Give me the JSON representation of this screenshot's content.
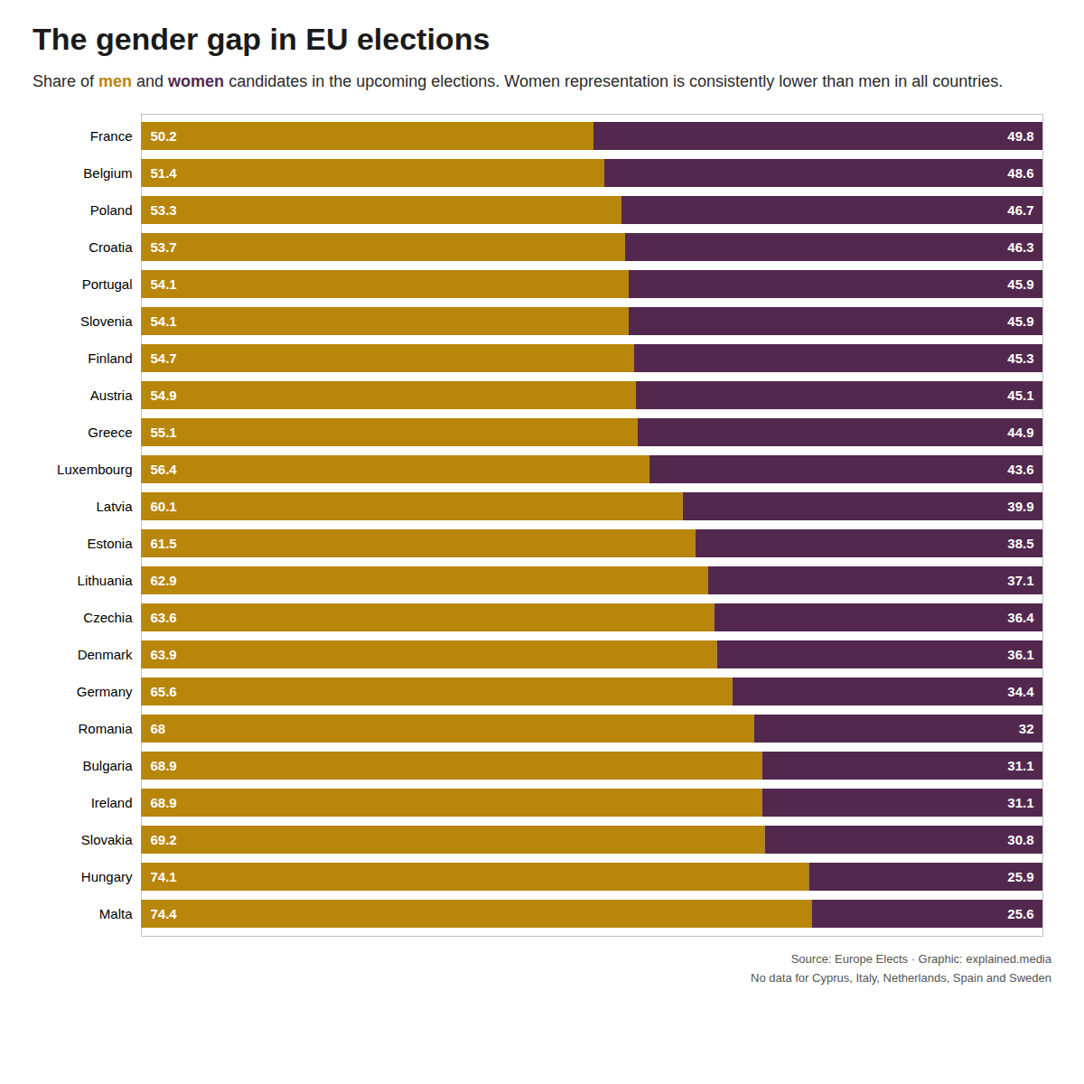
{
  "chart_data": {
    "type": "bar",
    "orientation": "horizontal",
    "stacked": true,
    "data_labels": true,
    "tick_labels": "y",
    "title": "The gender gap in EU elections",
    "subtitle": "Share of men and women candidates in the upcoming elections. Women representation is consistently lower than men in all countries.",
    "caption": "Source: Europe Elects · Graphic: explained.media\nNo data for Cyprus, Italy, Netherlands, Spain and Sweden",
    "categories": [
      "France",
      "Belgium",
      "Poland",
      "Croatia",
      "Portugal",
      "Slovenia",
      "Finland",
      "Austria",
      "Greece",
      "Luxembourg",
      "Latvia",
      "Estonia",
      "Lithuania",
      "Czechia",
      "Denmark",
      "Germany",
      "Romania",
      "Bulgaria",
      "Ireland",
      "Slovakia",
      "Hungary",
      "Malta"
    ],
    "series": [
      {
        "name": "men",
        "color": "#b8860b",
        "values": [
          50.2,
          51.4,
          53.3,
          53.7,
          54.1,
          54.1,
          54.7,
          54.9,
          55.1,
          56.4,
          60.1,
          61.5,
          62.9,
          63.6,
          63.9,
          65.6,
          68.0,
          68.9,
          68.9,
          69.2,
          74.1,
          74.4
        ]
      },
      {
        "name": "women",
        "color": "#52284f",
        "values": [
          49.8,
          48.6,
          46.7,
          46.3,
          45.9,
          45.9,
          45.3,
          45.1,
          44.9,
          43.6,
          39.9,
          38.5,
          37.1,
          36.4,
          36.1,
          34.4,
          32.0,
          31.1,
          31.1,
          30.8,
          25.9,
          25.6
        ]
      }
    ],
    "xlim": [
      0,
      100
    ]
  }
}
